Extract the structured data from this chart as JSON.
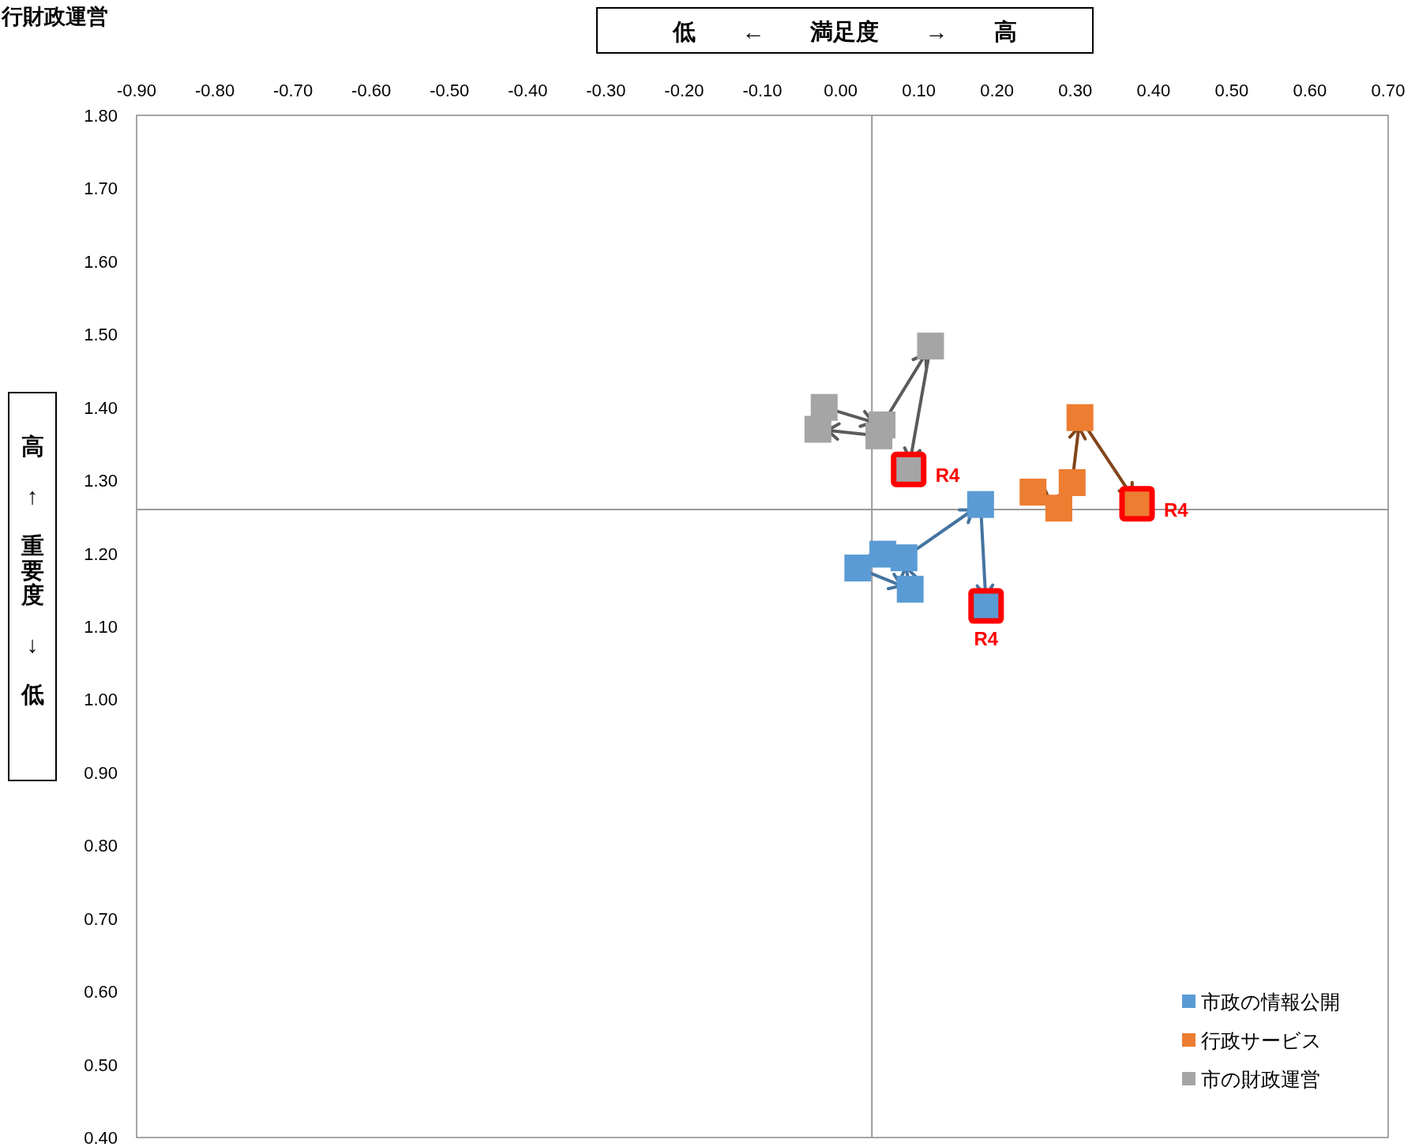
{
  "chart_data": {
    "type": "scatter",
    "title": "行財政運営",
    "xlabel": "低 ← 満足度 → 高",
    "ylabel": "高 ↑ 重要度 ↓ 低",
    "xlim": [
      -0.9,
      0.7
    ],
    "xticks": [
      {
        "value": -0.9,
        "label": "-0.90"
      },
      {
        "value": -0.8,
        "label": "-0.80"
      },
      {
        "value": -0.7,
        "label": "-0.70"
      },
      {
        "value": -0.6,
        "label": "-0.60"
      },
      {
        "value": -0.5,
        "label": "-0.50"
      },
      {
        "value": -0.4,
        "label": "-0.40"
      },
      {
        "value": -0.3,
        "label": "-0.30"
      },
      {
        "value": -0.2,
        "label": "-0.20"
      },
      {
        "value": -0.1,
        "label": "-0.10"
      },
      {
        "value": 0,
        "label": "0.00"
      },
      {
        "value": 0.1,
        "label": "0.10"
      },
      {
        "value": 0.2,
        "label": "0.20"
      },
      {
        "value": 0.3,
        "label": "0.30"
      },
      {
        "value": 0.4,
        "label": "0.40"
      },
      {
        "value": 0.5,
        "label": "0.50"
      },
      {
        "value": 0.6,
        "label": "0.60"
      },
      {
        "value": 0.7,
        "label": "0.70"
      }
    ],
    "ylim": [
      0.4,
      1.8
    ],
    "yticks": [
      {
        "value": 0.4,
        "label": "0.40"
      },
      {
        "value": 0.5,
        "label": "0.50"
      },
      {
        "value": 0.6,
        "label": "0.60"
      },
      {
        "value": 0.7,
        "label": "0.70"
      },
      {
        "value": 0.8,
        "label": "0.80"
      },
      {
        "value": 0.9,
        "label": "0.90"
      },
      {
        "value": 1.0,
        "label": "1.00"
      },
      {
        "value": 1.1,
        "label": "1.10"
      },
      {
        "value": 1.2,
        "label": "1.20"
      },
      {
        "value": 1.3,
        "label": "1.30"
      },
      {
        "value": 1.4,
        "label": "1.40"
      },
      {
        "value": 1.5,
        "label": "1.50"
      },
      {
        "value": 1.6,
        "label": "1.60"
      },
      {
        "value": 1.7,
        "label": "1.70"
      },
      {
        "value": 1.8,
        "label": "1.80"
      }
    ],
    "marker": "square",
    "legend": "bottom right",
    "grid": false,
    "series": [
      {
        "name": "市政の情報公開",
        "color": "#5b9bd5",
        "x": [
          0.054,
          0.022,
          0.089,
          0.081,
          0.179,
          0.186
        ],
        "values": [
          1.199,
          1.18,
          1.151,
          1.194,
          1.267,
          1.128
        ]
      },
      {
        "name": "行政サービス",
        "color": "#ed7d31",
        "x": [
          0.246,
          0.279,
          0.296,
          0.306,
          0.379
        ],
        "values": [
          1.284,
          1.262,
          1.297,
          1.386,
          1.268
        ]
      },
      {
        "name": "市の財政運営",
        "color": "#a5a5a5",
        "x": [
          0.049,
          -0.029,
          -0.021,
          0.053,
          0.115,
          0.087
        ],
        "values": [
          1.361,
          1.37,
          1.4,
          1.376,
          1.484,
          1.315
        ]
      }
    ],
    "ref_lines": [
      {
        "axis": "x",
        "value": 0.04,
        "color": "#999999"
      },
      {
        "axis": "y",
        "value": 1.26,
        "color": "#999999"
      }
    ],
    "annotations": [
      {
        "text": "R4",
        "x": 0.186,
        "y": 1.128
      },
      {
        "text": "R4",
        "x": 0.379,
        "y": 1.268
      },
      {
        "text": "R4",
        "x": 0.087,
        "y": 1.315
      }
    ]
  }
}
